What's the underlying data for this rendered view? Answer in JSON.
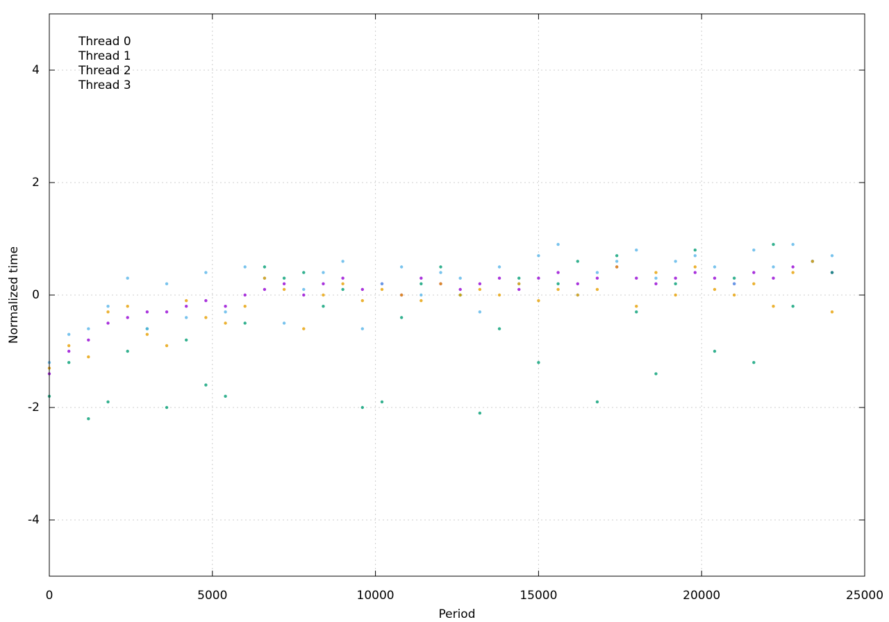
{
  "chart_data": {
    "type": "scatter",
    "x_label": "Period",
    "y_label": "Normalized time",
    "xlim": [
      0,
      25000
    ],
    "ylim": [
      -5,
      5
    ],
    "xticks": [
      0,
      5000,
      10000,
      15000,
      20000,
      25000
    ],
    "yticks": [
      -4,
      -2,
      0,
      2,
      4
    ],
    "grid": true,
    "legend": "top-left",
    "x": [
      0,
      600,
      1200,
      1800,
      2400,
      3000,
      3600,
      4200,
      4800,
      5400,
      6000,
      6600,
      7200,
      7800,
      8400,
      9000,
      9600,
      10200,
      10800,
      11400,
      12000,
      12600,
      13200,
      13800,
      14400,
      15000,
      15600,
      16200,
      16800,
      17400,
      18000,
      18600,
      19200,
      19800,
      20400,
      21000,
      21600,
      22200,
      22800,
      23400,
      24000
    ],
    "series": [
      {
        "name": "Thread 0",
        "color": "#9400d3",
        "values": [
          -1.4,
          -1.0,
          -0.8,
          -0.5,
          -0.4,
          -0.3,
          -0.3,
          -0.2,
          -0.1,
          -0.2,
          0.0,
          0.1,
          0.2,
          0.0,
          0.2,
          0.3,
          0.1,
          0.2,
          0.0,
          0.3,
          0.2,
          0.1,
          0.2,
          0.3,
          0.1,
          0.3,
          0.4,
          0.2,
          0.3,
          0.5,
          0.3,
          0.2,
          0.3,
          0.4,
          0.3,
          0.2,
          0.4,
          0.3,
          0.5,
          0.6,
          0.4
        ]
      },
      {
        "name": "Thread 1",
        "color": "#009e73",
        "values": [
          -1.8,
          -1.2,
          -2.2,
          -1.9,
          -1.0,
          -0.6,
          -2.0,
          -0.8,
          -1.6,
          -1.8,
          -0.5,
          0.5,
          0.3,
          0.4,
          -0.2,
          0.1,
          -2.0,
          -1.9,
          -0.4,
          0.2,
          0.5,
          0.0,
          -2.1,
          -0.6,
          0.3,
          -1.2,
          0.2,
          0.6,
          -1.9,
          0.7,
          -0.3,
          -1.4,
          0.2,
          0.8,
          -1.0,
          0.3,
          -1.2,
          0.9,
          -0.2,
          0.6,
          0.4
        ]
      },
      {
        "name": "Thread 2",
        "color": "#56b4e9",
        "values": [
          -1.2,
          -0.7,
          -0.6,
          -0.2,
          0.3,
          -0.6,
          0.2,
          -0.4,
          0.4,
          -0.3,
          0.5,
          0.3,
          -0.5,
          0.1,
          0.4,
          0.6,
          -0.6,
          0.2,
          0.5,
          0.0,
          0.4,
          0.3,
          -0.3,
          0.5,
          0.2,
          0.7,
          0.9,
          0.0,
          0.4,
          0.6,
          0.8,
          0.3,
          0.6,
          0.7,
          0.5,
          0.2,
          0.8,
          0.5,
          0.9,
          0.6,
          0.7
        ]
      },
      {
        "name": "Thread 3",
        "color": "#e69f00",
        "values": [
          -1.3,
          -0.9,
          -1.1,
          -0.3,
          -0.2,
          -0.7,
          -0.9,
          -0.1,
          -0.4,
          -0.5,
          -0.2,
          0.3,
          0.1,
          -0.6,
          0.0,
          0.2,
          -0.1,
          0.1,
          0.0,
          -0.1,
          0.2,
          0.0,
          0.1,
          0.0,
          0.2,
          -0.1,
          0.1,
          0.0,
          0.1,
          0.5,
          -0.2,
          0.4,
          0.0,
          0.5,
          0.1,
          0.0,
          0.2,
          -0.2,
          0.4,
          0.6,
          -0.3
        ]
      }
    ]
  }
}
